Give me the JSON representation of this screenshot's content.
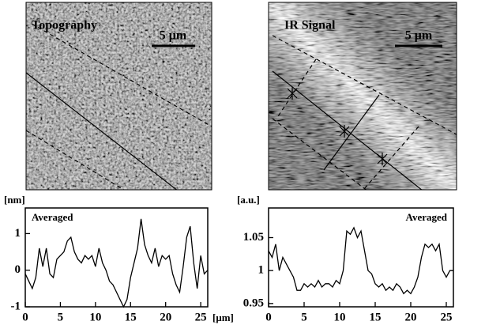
{
  "images": [
    {
      "title": "Topography",
      "scale_bar": "5 μm"
    },
    {
      "title": "IR Signal",
      "scale_bar": "5 μm"
    }
  ],
  "chart_data": [
    {
      "type": "line",
      "ylabel": "[nm]",
      "xlabel": "[μm]",
      "annotation": "Averaged",
      "color": "#000000",
      "x": [
        0,
        0.5,
        1,
        1.5,
        2,
        2.5,
        3,
        3.5,
        4,
        4.5,
        5,
        5.5,
        6,
        6.5,
        7,
        7.5,
        8,
        8.5,
        9,
        9.5,
        10,
        10.5,
        11,
        11.5,
        12,
        12.5,
        13,
        13.5,
        14,
        14.5,
        15,
        15.5,
        16,
        16.5,
        17,
        17.5,
        18,
        18.5,
        19,
        19.5,
        20,
        20.5,
        21,
        21.5,
        22,
        22.5,
        23,
        23.5,
        24,
        24.5,
        25,
        25.5,
        26
      ],
      "values": [
        -0.1,
        -0.3,
        -0.5,
        -0.2,
        0.6,
        0.1,
        0.6,
        -0.1,
        -0.2,
        0.3,
        0.4,
        0.5,
        0.8,
        0.9,
        0.5,
        0.3,
        0.2,
        0.4,
        0.3,
        0.4,
        0.1,
        0.6,
        0.2,
        0.0,
        -0.3,
        -0.4,
        -0.6,
        -0.8,
        -1.0,
        -0.8,
        -0.2,
        0.2,
        0.6,
        1.4,
        0.7,
        0.4,
        0.2,
        0.6,
        0.1,
        0.4,
        0.3,
        0.4,
        -0.1,
        -0.4,
        -0.6,
        0.1,
        0.9,
        1.2,
        0.2,
        -0.5,
        0.4,
        -0.1,
        0.0
      ],
      "xlim": [
        0,
        26
      ],
      "xticks": [
        0,
        5,
        10,
        15,
        20,
        25
      ],
      "ylim": [
        -1,
        1.7
      ],
      "yticks": [
        -1,
        0,
        1
      ]
    },
    {
      "type": "line",
      "ylabel": "[a.u.]",
      "annotation": "Averaged",
      "color": "#000000",
      "x": [
        0,
        0.5,
        1,
        1.5,
        2,
        2.5,
        3,
        3.5,
        4,
        4.5,
        5,
        5.5,
        6,
        6.5,
        7,
        7.5,
        8,
        8.5,
        9,
        9.5,
        10,
        10.5,
        11,
        11.5,
        12,
        12.5,
        13,
        13.5,
        14,
        14.5,
        15,
        15.5,
        16,
        16.5,
        17,
        17.5,
        18,
        18.5,
        19,
        19.5,
        20,
        20.5,
        21,
        21.5,
        22,
        22.5,
        23,
        23.5,
        24,
        24.5,
        25,
        25.5,
        26
      ],
      "values": [
        1.03,
        1.02,
        1.04,
        1.0,
        1.02,
        1.01,
        1.0,
        0.99,
        0.97,
        0.97,
        0.98,
        0.975,
        0.98,
        0.975,
        0.985,
        0.975,
        0.98,
        0.98,
        0.975,
        0.985,
        0.98,
        1.0,
        1.06,
        1.055,
        1.065,
        1.05,
        1.06,
        1.03,
        1.0,
        0.995,
        0.98,
        0.975,
        0.98,
        0.97,
        0.975,
        0.97,
        0.98,
        0.975,
        0.965,
        0.97,
        0.965,
        0.975,
        0.99,
        1.02,
        1.04,
        1.035,
        1.04,
        1.03,
        1.04,
        1.0,
        0.99,
        1.0,
        1.0
      ],
      "xlim": [
        0,
        26
      ],
      "xticks": [
        0,
        5,
        10,
        15,
        20,
        25
      ],
      "ylim": [
        0.945,
        1.095
      ],
      "yticks": [
        0.95,
        1,
        1.05
      ]
    }
  ]
}
